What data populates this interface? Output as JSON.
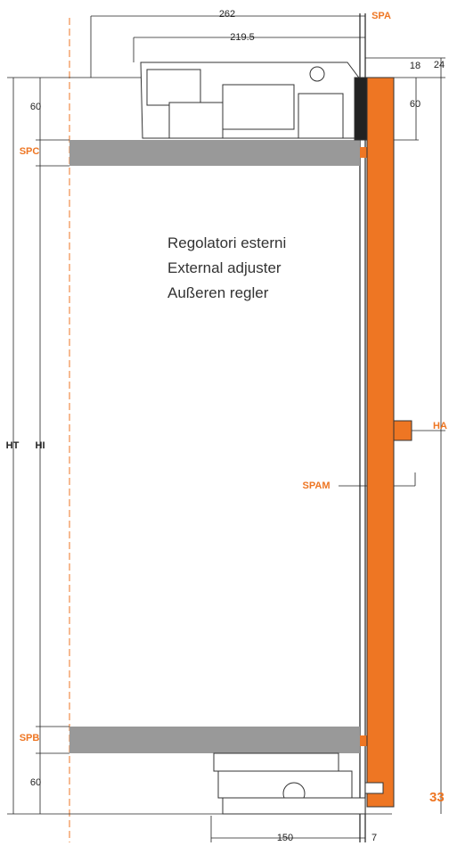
{
  "dimensions": {
    "top_width": "262",
    "inner_width": "219.5",
    "spa": "SPA",
    "right_18": "18",
    "right_24": "24",
    "top_left_60": "60",
    "top_right_60": "60",
    "spc": "SPC",
    "ht": "HT",
    "hi": "HI",
    "ha": "HA",
    "spam": "SPAM",
    "spb": "SPB",
    "bottom_left_60": "60",
    "bottom_33": "33",
    "bottom_150": "150",
    "bottom_7": "7"
  },
  "note": {
    "lines": [
      "Regolatori esterni",
      "External adjuster",
      "Außeren regler"
    ]
  }
}
